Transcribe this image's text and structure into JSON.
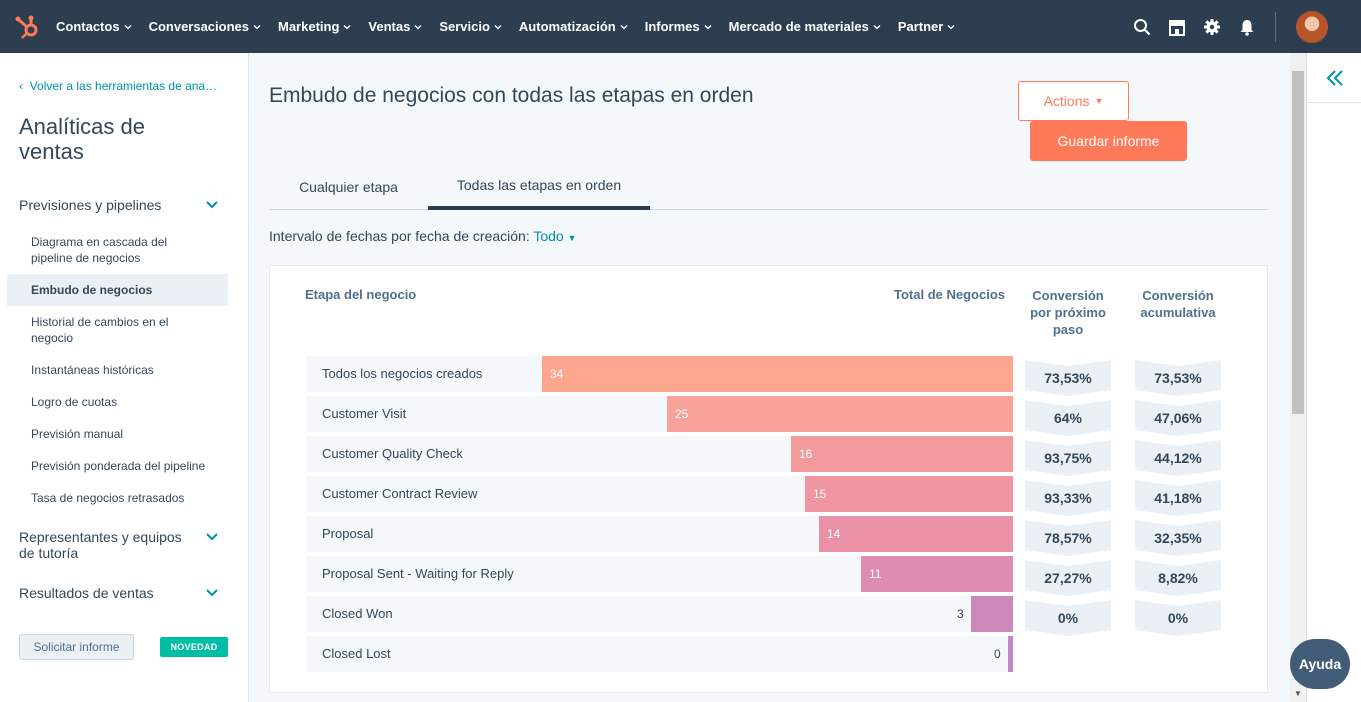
{
  "nav": {
    "items": [
      "Contactos",
      "Conversaciones",
      "Marketing",
      "Ventas",
      "Servicio",
      "Automatización",
      "Informes",
      "Mercado de materiales",
      "Partner"
    ]
  },
  "sidebar": {
    "back_link": "Volver a las herramientas de ana…",
    "title": "Analíticas de ventas",
    "sections": [
      {
        "label": "Previsiones y pipelines",
        "items": [
          "Diagrama en cascada del pipeline de negocios",
          "Embudo de negocios",
          "Historial de cambios en el negocio",
          "Instantáneas históricas",
          "Logro de cuotas",
          "Previsión manual",
          "Previsión ponderada del pipeline",
          "Tasa de negocios retrasados"
        ],
        "active": "Embudo de negocios"
      },
      {
        "label": "Representantes y equipos de tutoría"
      },
      {
        "label": "Resultados de ventas"
      }
    ],
    "request_button": "Solicitar informe",
    "new_badge": "NOVEDAD"
  },
  "main": {
    "title": "Embudo de negocios con todas las etapas en orden",
    "actions_label": "Actions",
    "save_label": "Guardar informe",
    "tabs": [
      "Cualquier etapa",
      "Todas las etapas en orden"
    ],
    "active_tab": "Todas las etapas en orden",
    "date_filter_label": "Intervalo de fechas por fecha de creación:",
    "date_filter_value": "Todo"
  },
  "table": {
    "col_stage": "Etapa del negocio",
    "col_total": "Total de Negocios",
    "col_next": "Conversión por próximo paso",
    "col_cumulative": "Conversión acumulativa"
  },
  "chart_data": {
    "type": "bar",
    "categories": [
      "Todos los negocios creados",
      "Customer Visit",
      "Customer Quality Check",
      "Customer Contract Review",
      "Proposal",
      "Proposal Sent - Waiting for Reply",
      "Closed Won",
      "Closed Lost"
    ],
    "values": [
      34,
      25,
      16,
      15,
      14,
      11,
      3,
      0
    ],
    "next_step_conversion": [
      "73,53%",
      "64%",
      "93,75%",
      "93,33%",
      "78,57%",
      "27,27%",
      "0%"
    ],
    "cumulative_conversion": [
      "73,53%",
      "47,06%",
      "44,12%",
      "41,18%",
      "32,35%",
      "8,82%",
      "0%"
    ],
    "bar_colors": [
      "#fea58e",
      "#f8a09a",
      "#f39a9d",
      "#ef96a2",
      "#ea91a7",
      "#df8cb2",
      "#cc88b9",
      "#c587c3"
    ]
  },
  "help": {
    "label": "Ayuda"
  }
}
